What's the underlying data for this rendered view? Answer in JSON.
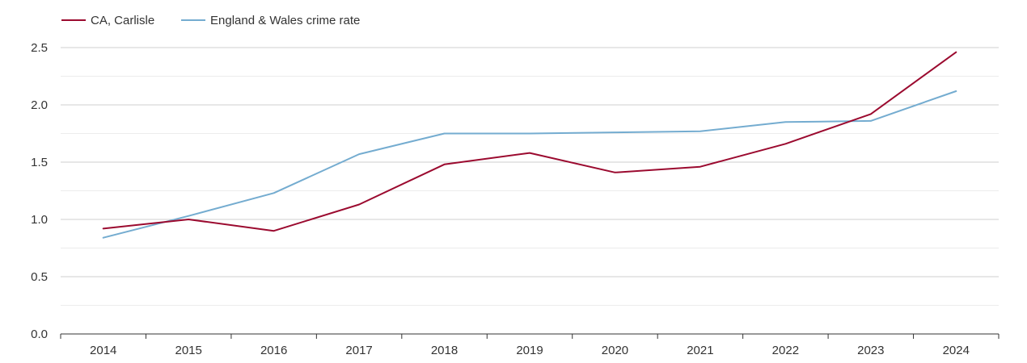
{
  "chart_data": {
    "type": "line",
    "title": "",
    "xlabel": "",
    "ylabel": "",
    "categories": [
      "2014",
      "2015",
      "2016",
      "2017",
      "2018",
      "2019",
      "2020",
      "2021",
      "2022",
      "2023",
      "2024"
    ],
    "ylim": [
      0,
      2.5
    ],
    "yticks": [
      0.0,
      0.5,
      1.0,
      1.5,
      2.0,
      2.5
    ],
    "ytick_labels": [
      "0.0",
      "0.5",
      "1.0",
      "1.5",
      "2.0",
      "2.5"
    ],
    "grid": true,
    "legend_position": "top-left",
    "series": [
      {
        "name": "CA, Carlisle",
        "color": "#9b0a2f",
        "values": [
          0.92,
          1.0,
          0.9,
          1.13,
          1.48,
          1.58,
          1.41,
          1.46,
          1.66,
          1.92,
          2.46
        ]
      },
      {
        "name": "England & Wales crime rate",
        "color": "#74acd0",
        "values": [
          0.84,
          1.03,
          1.23,
          1.57,
          1.75,
          1.75,
          1.76,
          1.77,
          1.85,
          1.86,
          2.12
        ]
      }
    ]
  }
}
